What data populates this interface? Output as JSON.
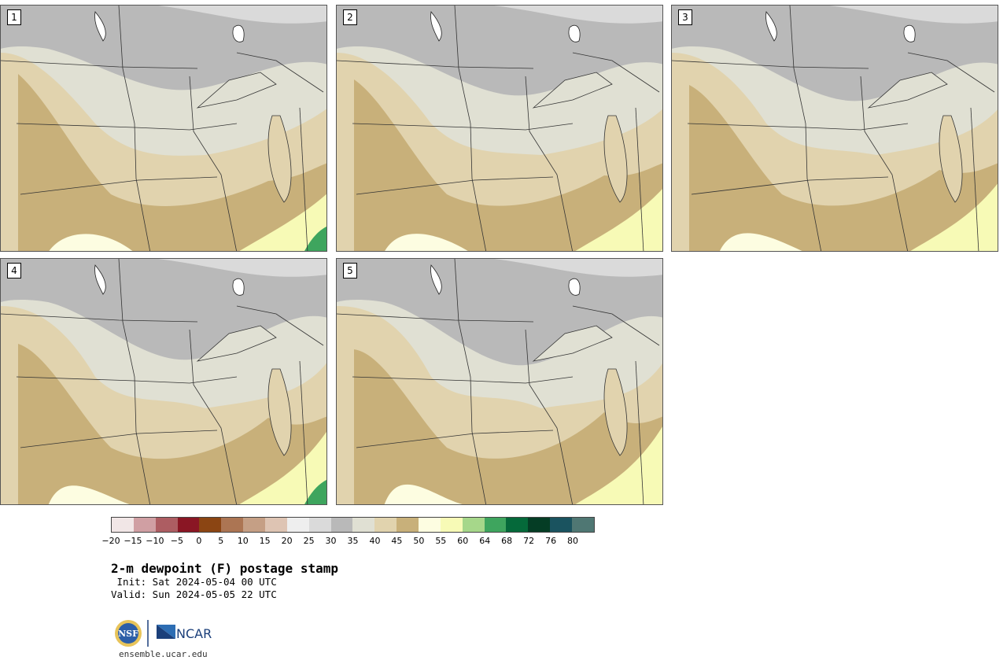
{
  "panels": [
    {
      "label": "1"
    },
    {
      "label": "2"
    },
    {
      "label": "3"
    },
    {
      "label": "4"
    },
    {
      "label": "5"
    }
  ],
  "colorbar": {
    "colors": [
      "#f1e6e6",
      "#d09fa3",
      "#ad5d62",
      "#8a1624",
      "#8b4513",
      "#ac7553",
      "#c59f85",
      "#dec4b3",
      "#eeeeee",
      "#dadada",
      "#b9b9b9",
      "#e0e0d3",
      "#e1d3ae",
      "#c8b07a",
      "#fdfde1",
      "#f7fab6",
      "#a6d78a",
      "#3ea55e",
      "#05693a",
      "#053d25",
      "#1a535f",
      "#4f7773"
    ],
    "tick_labels": [
      "−20",
      "−15",
      "−10",
      "−5",
      "0",
      "5",
      "10",
      "15",
      "20",
      "25",
      "30",
      "35",
      "40",
      "45",
      "50",
      "55",
      "60",
      "64",
      "68",
      "72",
      "76",
      "80"
    ]
  },
  "title": "2-m dewpoint (F) postage stamp",
  "init_line": " Init: Sat 2024-05-04 00 UTC",
  "valid_line": "Valid: Sun 2024-05-05 22 UTC",
  "logos": {
    "nsf": "NSF",
    "ncar": "NCAR"
  },
  "website": "ensemble.ucar.edu"
}
